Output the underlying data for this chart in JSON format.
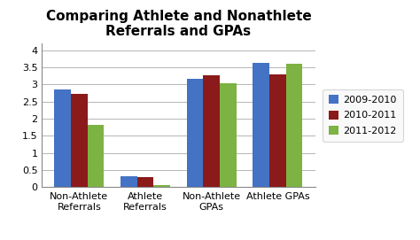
{
  "title": "Comparing Athlete and Nonathlete\nReferrals and GPAs",
  "categories": [
    "Non-Athlete\nReferrals",
    "Athlete\nReferrals",
    "Non-Athlete\nGPAs",
    "Athlete GPAs"
  ],
  "series": {
    "2009-2010": [
      2.85,
      0.33,
      3.15,
      3.63
    ],
    "2010-2011": [
      2.73,
      0.3,
      3.27,
      3.3
    ],
    "2011-2012": [
      1.82,
      0.05,
      3.04,
      3.6
    ]
  },
  "colors": {
    "2009-2010": "#4472C4",
    "2010-2011": "#8B1A1A",
    "2011-2012": "#7CB342"
  },
  "ylim": [
    0,
    4.2
  ],
  "yticks": [
    0,
    0.5,
    1.0,
    1.5,
    2.0,
    2.5,
    3.0,
    3.5,
    4.0
  ],
  "legend_labels": [
    "2009-2010",
    "2010-2011",
    "2011-2012"
  ],
  "bar_width": 0.25,
  "background_color": "#ffffff",
  "plot_bg_color": "#ffffff",
  "title_fontsize": 11,
  "tick_fontsize": 8,
  "legend_fontsize": 8
}
